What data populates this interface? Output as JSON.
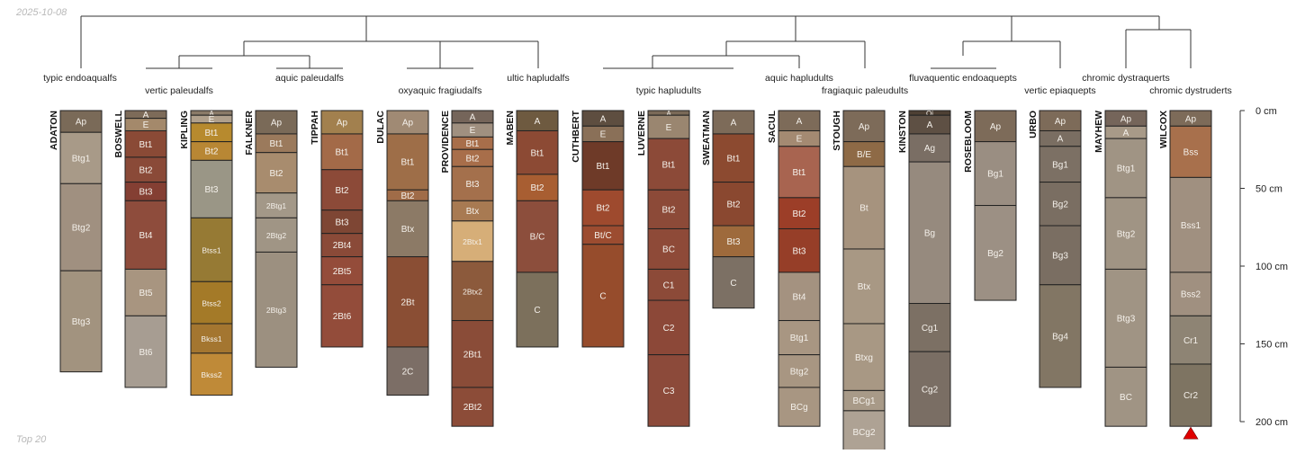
{
  "date": "2025-10-08",
  "footer": "Top 20",
  "depth_axis": {
    "unit": "cm",
    "max_depth": 200,
    "ticks": [
      {
        "depth": 0,
        "label": "0 cm"
      },
      {
        "depth": 50,
        "label": "50 cm"
      },
      {
        "depth": 100,
        "label": "100 cm"
      },
      {
        "depth": 150,
        "label": "150 cm"
      },
      {
        "depth": 200,
        "label": "200 cm"
      }
    ]
  },
  "groups": [
    {
      "label": "typic endoaqualfs",
      "row": 0
    },
    {
      "label": "vertic paleudalfs",
      "row": 1
    },
    {
      "label": "aquic paleudalfs",
      "row": 0
    },
    {
      "label": "oxyaquic fragiudalfs",
      "row": 1
    },
    {
      "label": "ultic hapludalfs",
      "row": 0
    },
    {
      "label": "typic hapludults",
      "row": 1
    },
    {
      "label": "aquic hapludults",
      "row": 0
    },
    {
      "label": "fragiaquic paleudults",
      "row": 1
    },
    {
      "label": "fluvaquentic endoaquepts",
      "row": 0
    },
    {
      "label": "vertic epiaquepts",
      "row": 1
    },
    {
      "label": "chromic dystraquerts",
      "row": 0
    },
    {
      "label": "chromic dystruderts",
      "row": 1
    }
  ],
  "profiles": [
    {
      "name": "ADATON",
      "horizons": [
        {
          "name": "Ap",
          "top": 0,
          "bottom": 14,
          "color": "#7a6a58"
        },
        {
          "name": "Btg1",
          "top": 14,
          "bottom": 47,
          "color": "#a89a88"
        },
        {
          "name": "Btg2",
          "top": 47,
          "bottom": 103,
          "color": "#a09080"
        },
        {
          "name": "Btg3",
          "top": 103,
          "bottom": 168,
          "color": "#a2937f"
        }
      ]
    },
    {
      "name": "BOSWELL",
      "horizons": [
        {
          "name": "A",
          "top": 0,
          "bottom": 5,
          "color": "#7d6b59"
        },
        {
          "name": "E",
          "top": 5,
          "bottom": 13,
          "color": "#a4896b"
        },
        {
          "name": "Bt1",
          "top": 13,
          "bottom": 30,
          "color": "#8a4a36"
        },
        {
          "name": "Bt2",
          "top": 30,
          "bottom": 46,
          "color": "#8a4a38"
        },
        {
          "name": "Bt3",
          "top": 46,
          "bottom": 58,
          "color": "#843f33"
        },
        {
          "name": "Bt4",
          "top": 58,
          "bottom": 102,
          "color": "#8e4c3c"
        },
        {
          "name": "Bt5",
          "top": 102,
          "bottom": 132,
          "color": "#a89580"
        },
        {
          "name": "Bt6",
          "top": 132,
          "bottom": 178,
          "color": "#a79d92"
        }
      ]
    },
    {
      "name": "KIPLING",
      "horizons": [
        {
          "name": "A",
          "top": 0,
          "bottom": 3,
          "color": "#8a7a68"
        },
        {
          "name": "E",
          "top": 3,
          "bottom": 8,
          "color": "#b0a08c"
        },
        {
          "name": "Bt1",
          "top": 8,
          "bottom": 20,
          "color": "#b78a2e"
        },
        {
          "name": "Bt2",
          "top": 20,
          "bottom": 32,
          "color": "#b88734"
        },
        {
          "name": "Bt3",
          "top": 32,
          "bottom": 69,
          "color": "#9a9686"
        },
        {
          "name": "Btss1",
          "top": 69,
          "bottom": 110,
          "color": "#967a34"
        },
        {
          "name": "Btss2",
          "top": 110,
          "bottom": 137,
          "color": "#a47a28"
        },
        {
          "name": "Bkss1",
          "top": 137,
          "bottom": 156,
          "color": "#a47630"
        },
        {
          "name": "Bkss2",
          "top": 156,
          "bottom": 183,
          "color": "#bf8a38"
        }
      ]
    },
    {
      "name": "FALKNER",
      "horizons": [
        {
          "name": "Ap",
          "top": 0,
          "bottom": 15,
          "color": "#7a6a58"
        },
        {
          "name": "Bt1",
          "top": 15,
          "bottom": 27,
          "color": "#9b7a5c"
        },
        {
          "name": "Bt2",
          "top": 27,
          "bottom": 53,
          "color": "#a88c6e"
        },
        {
          "name": "2Btg1",
          "top": 53,
          "bottom": 69,
          "color": "#a39888"
        },
        {
          "name": "2Btg2",
          "top": 69,
          "bottom": 91,
          "color": "#a09585"
        },
        {
          "name": "2Btg3",
          "top": 91,
          "bottom": 165,
          "color": "#9c9080"
        }
      ]
    },
    {
      "name": "TIPPAH",
      "horizons": [
        {
          "name": "Ap",
          "top": 0,
          "bottom": 15,
          "color": "#a2804e"
        },
        {
          "name": "Bt1",
          "top": 15,
          "bottom": 38,
          "color": "#a36a48"
        },
        {
          "name": "Bt2",
          "top": 38,
          "bottom": 64,
          "color": "#8c4a38"
        },
        {
          "name": "Bt3",
          "top": 64,
          "bottom": 79,
          "color": "#7e4634"
        },
        {
          "name": "2Bt4",
          "top": 79,
          "bottom": 94,
          "color": "#8a4a38"
        },
        {
          "name": "2Bt5",
          "top": 94,
          "bottom": 112,
          "color": "#944c3a"
        },
        {
          "name": "2Bt6",
          "top": 112,
          "bottom": 152,
          "color": "#934c3a"
        }
      ]
    },
    {
      "name": "DULAC",
      "horizons": [
        {
          "name": "Ap",
          "top": 0,
          "bottom": 15,
          "color": "#a08a74"
        },
        {
          "name": "Bt1",
          "top": 15,
          "bottom": 51,
          "color": "#9e6e48"
        },
        {
          "name": "Bt2",
          "top": 51,
          "bottom": 58,
          "color": "#a06c48"
        },
        {
          "name": "Btx",
          "top": 58,
          "bottom": 94,
          "color": "#8c7a66"
        },
        {
          "name": "2Bt",
          "top": 94,
          "bottom": 152,
          "color": "#8a4e34"
        },
        {
          "name": "2C",
          "top": 152,
          "bottom": 183,
          "color": "#7c6e66"
        }
      ]
    },
    {
      "name": "PROVIDENCE",
      "horizons": [
        {
          "name": "A",
          "top": 0,
          "bottom": 8,
          "color": "#75655a"
        },
        {
          "name": "E",
          "top": 8,
          "bottom": 17,
          "color": "#a09080"
        },
        {
          "name": "Bt1",
          "top": 17,
          "bottom": 25,
          "color": "#a86e4a"
        },
        {
          "name": "Bt2",
          "top": 25,
          "bottom": 36,
          "color": "#a86e4a"
        },
        {
          "name": "Bt3",
          "top": 36,
          "bottom": 58,
          "color": "#a4704c"
        },
        {
          "name": "Btx",
          "top": 58,
          "bottom": 71,
          "color": "#a87a52"
        },
        {
          "name": "2Btx1",
          "top": 71,
          "bottom": 97,
          "color": "#d6ae78"
        },
        {
          "name": "2Btx2",
          "top": 97,
          "bottom": 135,
          "color": "#8c5a3c"
        },
        {
          "name": "2Bt1",
          "top": 135,
          "bottom": 178,
          "color": "#8a4c38"
        },
        {
          "name": "2Bt2",
          "top": 178,
          "bottom": 203,
          "color": "#8c4c38"
        }
      ]
    },
    {
      "name": "MABEN",
      "horizons": [
        {
          "name": "A",
          "top": 0,
          "bottom": 13,
          "color": "#6e5a40"
        },
        {
          "name": "Bt1",
          "top": 13,
          "bottom": 41,
          "color": "#8c4a34"
        },
        {
          "name": "Bt2",
          "top": 41,
          "bottom": 58,
          "color": "#a85e32"
        },
        {
          "name": "B/C",
          "top": 58,
          "bottom": 104,
          "color": "#8c4e3c"
        },
        {
          "name": "C",
          "top": 104,
          "bottom": 152,
          "color": "#7c705c"
        }
      ]
    },
    {
      "name": "CUTHBERT",
      "horizons": [
        {
          "name": "A",
          "top": 0,
          "bottom": 10,
          "color": "#5e4e40"
        },
        {
          "name": "E",
          "top": 10,
          "bottom": 20,
          "color": "#8a7058"
        },
        {
          "name": "Bt1",
          "top": 20,
          "bottom": 51,
          "color": "#6e3a28"
        },
        {
          "name": "Bt2",
          "top": 51,
          "bottom": 74,
          "color": "#9e4a2e"
        },
        {
          "name": "Bt/C",
          "top": 74,
          "bottom": 86,
          "color": "#9c4c30"
        },
        {
          "name": "C",
          "top": 86,
          "bottom": 152,
          "color": "#964c2c"
        }
      ]
    },
    {
      "name": "LUVERNE",
      "horizons": [
        {
          "name": "A",
          "top": 0,
          "bottom": 3,
          "color": "#7a6a58"
        },
        {
          "name": "E",
          "top": 3,
          "bottom": 18,
          "color": "#9a8670"
        },
        {
          "name": "Bt1",
          "top": 18,
          "bottom": 51,
          "color": "#8c4a38"
        },
        {
          "name": "Bt2",
          "top": 51,
          "bottom": 76,
          "color": "#8c4a38"
        },
        {
          "name": "BC",
          "top": 76,
          "bottom": 102,
          "color": "#8e4a38"
        },
        {
          "name": "C1",
          "top": 102,
          "bottom": 122,
          "color": "#8c4a38"
        },
        {
          "name": "C2",
          "top": 122,
          "bottom": 157,
          "color": "#8c4838"
        },
        {
          "name": "C3",
          "top": 157,
          "bottom": 203,
          "color": "#8c4a3a"
        }
      ]
    },
    {
      "name": "SWEATMAN",
      "horizons": [
        {
          "name": "A",
          "top": 0,
          "bottom": 15,
          "color": "#7d6b59"
        },
        {
          "name": "Bt1",
          "top": 15,
          "bottom": 46,
          "color": "#8c4a30"
        },
        {
          "name": "Bt2",
          "top": 46,
          "bottom": 74,
          "color": "#8a4830"
        },
        {
          "name": "Bt3",
          "top": 74,
          "bottom": 94,
          "color": "#9e6a3c"
        },
        {
          "name": "C",
          "top": 94,
          "bottom": 127,
          "color": "#7c7064"
        }
      ]
    },
    {
      "name": "SACUL",
      "horizons": [
        {
          "name": "A",
          "top": 0,
          "bottom": 13,
          "color": "#7d6b59"
        },
        {
          "name": "E",
          "top": 13,
          "bottom": 23,
          "color": "#a48a72"
        },
        {
          "name": "Bt1",
          "top": 23,
          "bottom": 56,
          "color": "#a86450"
        },
        {
          "name": "Bt2",
          "top": 56,
          "bottom": 76,
          "color": "#9c3e28"
        },
        {
          "name": "Bt3",
          "top": 76,
          "bottom": 104,
          "color": "#963e28"
        },
        {
          "name": "Bt4",
          "top": 104,
          "bottom": 135,
          "color": "#a49280"
        },
        {
          "name": "Btg1",
          "top": 135,
          "bottom": 157,
          "color": "#a89682"
        },
        {
          "name": "Btg2",
          "top": 157,
          "bottom": 178,
          "color": "#a89682"
        },
        {
          "name": "BCg",
          "top": 178,
          "bottom": 203,
          "color": "#a89682"
        }
      ]
    },
    {
      "name": "STOUGH",
      "horizons": [
        {
          "name": "Ap",
          "top": 0,
          "bottom": 20,
          "color": "#7d6b59"
        },
        {
          "name": "B/E",
          "top": 20,
          "bottom": 36,
          "color": "#8e6a46"
        },
        {
          "name": "Bt",
          "top": 36,
          "bottom": 89,
          "color": "#a6937e"
        },
        {
          "name": "Btx",
          "top": 89,
          "bottom": 137,
          "color": "#a89884"
        },
        {
          "name": "Btxg",
          "top": 137,
          "bottom": 180,
          "color": "#a89884"
        },
        {
          "name": "BCg1",
          "top": 180,
          "bottom": 193,
          "color": "#a89a88"
        },
        {
          "name": "BCg2",
          "top": 193,
          "bottom": 220,
          "color": "#aea294"
        }
      ]
    },
    {
      "name": "KINSTON",
      "horizons": [
        {
          "name": "Oi",
          "top": 0,
          "bottom": 3,
          "color": "#4e4034"
        },
        {
          "name": "A",
          "top": 3,
          "bottom": 15,
          "color": "#5e5044"
        },
        {
          "name": "Ag",
          "top": 15,
          "bottom": 33,
          "color": "#7a6e64"
        },
        {
          "name": "Bg",
          "top": 33,
          "bottom": 124,
          "color": "#968a7e"
        },
        {
          "name": "Cg1",
          "top": 124,
          "bottom": 155,
          "color": "#7c7064"
        },
        {
          "name": "Cg2",
          "top": 155,
          "bottom": 203,
          "color": "#7a6e64"
        }
      ]
    },
    {
      "name": "ROSEBLOOM",
      "horizons": [
        {
          "name": "Ap",
          "top": 0,
          "bottom": 20,
          "color": "#7d6b59"
        },
        {
          "name": "Bg1",
          "top": 20,
          "bottom": 61,
          "color": "#9a8e82"
        },
        {
          "name": "Bg2",
          "top": 61,
          "bottom": 122,
          "color": "#9c9084"
        }
      ]
    },
    {
      "name": "URBO",
      "horizons": [
        {
          "name": "Ap",
          "top": 0,
          "bottom": 13,
          "color": "#7d6b59"
        },
        {
          "name": "A",
          "top": 13,
          "bottom": 23,
          "color": "#7a6e62"
        },
        {
          "name": "Bg1",
          "top": 23,
          "bottom": 46,
          "color": "#7c7064"
        },
        {
          "name": "Bg2",
          "top": 46,
          "bottom": 74,
          "color": "#7a6e62"
        },
        {
          "name": "Bg3",
          "top": 74,
          "bottom": 112,
          "color": "#7a6e62"
        },
        {
          "name": "Bg4",
          "top": 112,
          "bottom": 178,
          "color": "#827664"
        }
      ]
    },
    {
      "name": "MAYHEW",
      "horizons": [
        {
          "name": "Ap",
          "top": 0,
          "bottom": 10,
          "color": "#75655a"
        },
        {
          "name": "A",
          "top": 10,
          "bottom": 18,
          "color": "#a89a88"
        },
        {
          "name": "Btg1",
          "top": 18,
          "bottom": 56,
          "color": "#a09484"
        },
        {
          "name": "Btg2",
          "top": 56,
          "bottom": 102,
          "color": "#a09484"
        },
        {
          "name": "Btg3",
          "top": 102,
          "bottom": 165,
          "color": "#a09484"
        },
        {
          "name": "BC",
          "top": 165,
          "bottom": 203,
          "color": "#a09484"
        }
      ]
    },
    {
      "name": "WILCOX",
      "horizons": [
        {
          "name": "Ap",
          "top": 0,
          "bottom": 10,
          "color": "#7d6b59"
        },
        {
          "name": "Bss",
          "top": 10,
          "bottom": 43,
          "color": "#a8704c"
        },
        {
          "name": "Bss1",
          "top": 43,
          "bottom": 104,
          "color": "#a09080"
        },
        {
          "name": "Bss2",
          "top": 104,
          "bottom": 132,
          "color": "#a09080"
        },
        {
          "name": "Cr1",
          "top": 132,
          "bottom": 163,
          "color": "#8e8474"
        },
        {
          "name": "Cr2",
          "top": 163,
          "bottom": 203,
          "color": "#7e7462"
        }
      ]
    }
  ]
}
